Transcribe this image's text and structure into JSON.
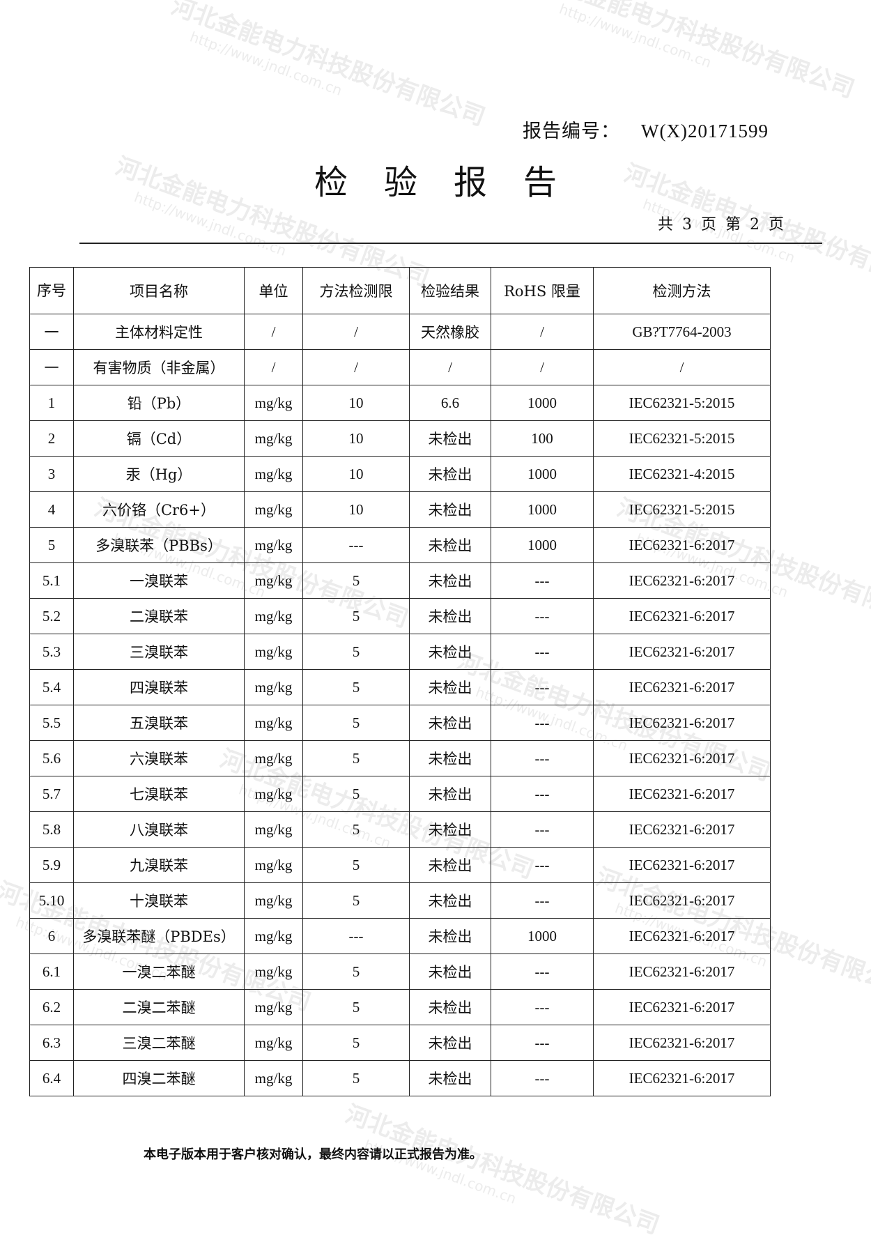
{
  "header": {
    "report_no_label": "报告编号：",
    "report_no": "W(X)20171599",
    "title": "检验报告",
    "pages": "共 3 页  第 2 页"
  },
  "watermark": {
    "company": "河北金能电力科技股份有限公司",
    "url": "http://www.jndl.com.cn",
    "logo": "金能电力"
  },
  "table": {
    "headers": [
      "序号",
      "项目名称",
      "单位",
      "方法检测限",
      "检验结果",
      "RoHS 限量",
      "检测方法"
    ],
    "rows": [
      [
        "一",
        "主体材料定性",
        "/",
        "/",
        "天然橡胶",
        "/",
        "GB?T7764-2003"
      ],
      [
        "一",
        "有害物质（非金属）",
        "/",
        "/",
        "/",
        "/",
        "/"
      ],
      [
        "1",
        "铅（Pb）",
        "mg/kg",
        "10",
        "6.6",
        "1000",
        "IEC62321-5:2015"
      ],
      [
        "2",
        "镉（Cd）",
        "mg/kg",
        "10",
        "未检出",
        "100",
        "IEC62321-5:2015"
      ],
      [
        "3",
        "汞（Hg）",
        "mg/kg",
        "10",
        "未检出",
        "1000",
        "IEC62321-4:2015"
      ],
      [
        "4",
        "六价铬（Cr6+）",
        "mg/kg",
        "10",
        "未检出",
        "1000",
        "IEC62321-5:2015"
      ],
      [
        "5",
        "多溴联苯（PBBs）",
        "mg/kg",
        "---",
        "未检出",
        "1000",
        "IEC62321-6:2017"
      ],
      [
        "5.1",
        "一溴联苯",
        "mg/kg",
        "5",
        "未检出",
        "---",
        "IEC62321-6:2017"
      ],
      [
        "5.2",
        "二溴联苯",
        "mg/kg",
        "5",
        "未检出",
        "---",
        "IEC62321-6:2017"
      ],
      [
        "5.3",
        "三溴联苯",
        "mg/kg",
        "5",
        "未检出",
        "---",
        "IEC62321-6:2017"
      ],
      [
        "5.4",
        "四溴联苯",
        "mg/kg",
        "5",
        "未检出",
        "---",
        "IEC62321-6:2017"
      ],
      [
        "5.5",
        "五溴联苯",
        "mg/kg",
        "5",
        "未检出",
        "---",
        "IEC62321-6:2017"
      ],
      [
        "5.6",
        "六溴联苯",
        "mg/kg",
        "5",
        "未检出",
        "---",
        "IEC62321-6:2017"
      ],
      [
        "5.7",
        "七溴联苯",
        "mg/kg",
        "5",
        "未检出",
        "---",
        "IEC62321-6:2017"
      ],
      [
        "5.8",
        "八溴联苯",
        "mg/kg",
        "5",
        "未检出",
        "---",
        "IEC62321-6:2017"
      ],
      [
        "5.9",
        "九溴联苯",
        "mg/kg",
        "5",
        "未检出",
        "---",
        "IEC62321-6:2017"
      ],
      [
        "5.10",
        "十溴联苯",
        "mg/kg",
        "5",
        "未检出",
        "---",
        "IEC62321-6:2017"
      ],
      [
        "6",
        "多溴联苯醚（PBDEs）",
        "mg/kg",
        "---",
        "未检出",
        "1000",
        "IEC62321-6:2017"
      ],
      [
        "6.1",
        "一溴二苯醚",
        "mg/kg",
        "5",
        "未检出",
        "---",
        "IEC62321-6:2017"
      ],
      [
        "6.2",
        "二溴二苯醚",
        "mg/kg",
        "5",
        "未检出",
        "---",
        "IEC62321-6:2017"
      ],
      [
        "6.3",
        "三溴二苯醚",
        "mg/kg",
        "5",
        "未检出",
        "---",
        "IEC62321-6:2017"
      ],
      [
        "6.4",
        "四溴二苯醚",
        "mg/kg",
        "5",
        "未检出",
        "---",
        "IEC62321-6:2017"
      ]
    ]
  },
  "footer": "本电子版本用于客户核对确认，最终内容请以正式报告为准。"
}
